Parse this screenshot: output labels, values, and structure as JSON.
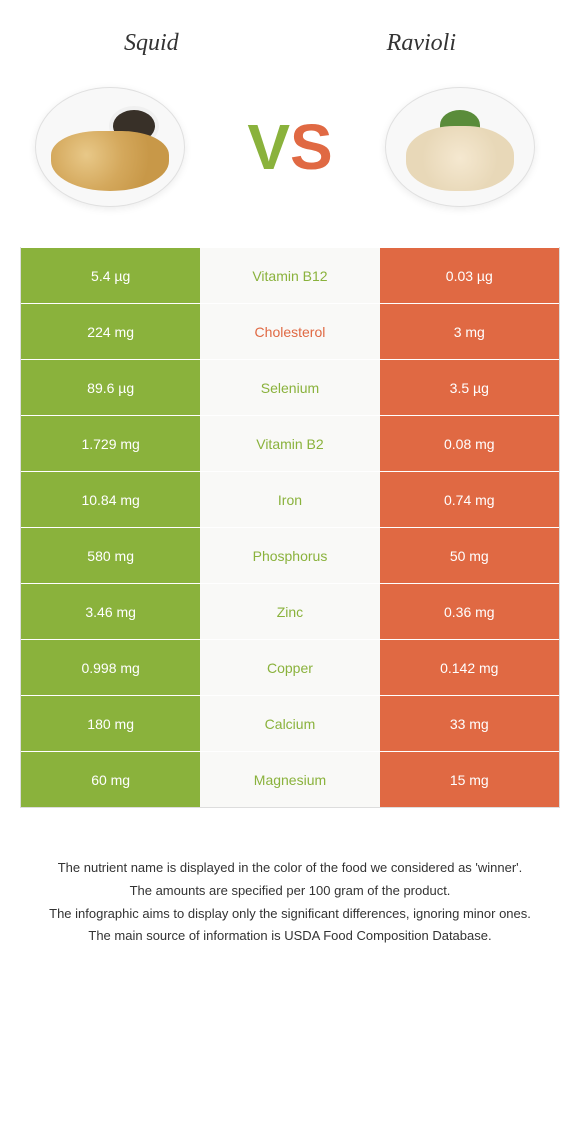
{
  "header": {
    "left_title": "Squid",
    "right_title": "Ravioli"
  },
  "vs": {
    "v": "V",
    "s": "S"
  },
  "colors": {
    "green": "#8ab23c",
    "orange": "#e06943",
    "green_text": "#8ab23c",
    "orange_text": "#e06943"
  },
  "rows": [
    {
      "left": "5.4 µg",
      "mid": "Vitamin B12",
      "right": "0.03 µg",
      "winner": "green"
    },
    {
      "left": "224 mg",
      "mid": "Cholesterol",
      "right": "3 mg",
      "winner": "orange"
    },
    {
      "left": "89.6 µg",
      "mid": "Selenium",
      "right": "3.5 µg",
      "winner": "green"
    },
    {
      "left": "1.729 mg",
      "mid": "Vitamin B2",
      "right": "0.08 mg",
      "winner": "green"
    },
    {
      "left": "10.84 mg",
      "mid": "Iron",
      "right": "0.74 mg",
      "winner": "green"
    },
    {
      "left": "580 mg",
      "mid": "Phosphorus",
      "right": "50 mg",
      "winner": "green"
    },
    {
      "left": "3.46 mg",
      "mid": "Zinc",
      "right": "0.36 mg",
      "winner": "green"
    },
    {
      "left": "0.998 mg",
      "mid": "Copper",
      "right": "0.142 mg",
      "winner": "green"
    },
    {
      "left": "180 mg",
      "mid": "Calcium",
      "right": "33 mg",
      "winner": "green"
    },
    {
      "left": "60 mg",
      "mid": "Magnesium",
      "right": "15 mg",
      "winner": "green"
    }
  ],
  "footer": {
    "line1": "The nutrient name is displayed in the color of the food we considered as 'winner'.",
    "line2": "The amounts are specified per 100 gram of the product.",
    "line3": "The infographic aims to display only the significant differences, ignoring minor ones.",
    "line4": "The main source of information is USDA Food Composition Database."
  }
}
